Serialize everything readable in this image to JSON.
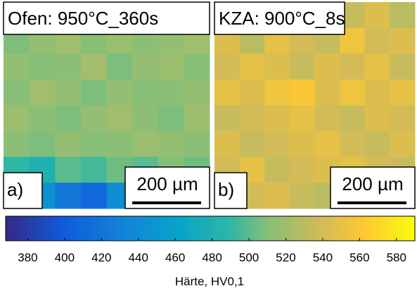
{
  "chart_data": {
    "type": "heatmap",
    "panels": [
      {
        "title": "Ofen: 950°C_360s",
        "label": "a)",
        "scale_bar": "200 µm",
        "values": [
          [
            512,
            518,
            508,
            515,
            510,
            520,
            512,
            508
          ],
          [
            508,
            515,
            520,
            510,
            518,
            512,
            515,
            520
          ],
          [
            515,
            510,
            512,
            522,
            508,
            515,
            518,
            510
          ],
          [
            510,
            520,
            515,
            508,
            515,
            510,
            512,
            515
          ],
          [
            518,
            512,
            508,
            515,
            520,
            512,
            508,
            518
          ],
          [
            512,
            508,
            515,
            510,
            512,
            518,
            515,
            512
          ],
          [
            490,
            480,
            500,
            495,
            505,
            500,
            510,
            505
          ],
          [
            430,
            445,
            420,
            410,
            440,
            420,
            470,
            490
          ]
        ]
      },
      {
        "title": "KZA: 900°C_8s",
        "label": "b)",
        "scale_bar": "200 µm",
        "values": [
          [
            535,
            545,
            530,
            540,
            550,
            535,
            545,
            530
          ],
          [
            545,
            530,
            550,
            540,
            535,
            555,
            540,
            545
          ],
          [
            540,
            550,
            545,
            535,
            545,
            540,
            550,
            535
          ],
          [
            550,
            545,
            555,
            560,
            545,
            555,
            545,
            550
          ],
          [
            535,
            540,
            545,
            550,
            540,
            535,
            545,
            540
          ],
          [
            545,
            535,
            540,
            545,
            550,
            540,
            535,
            545
          ],
          [
            540,
            550,
            535,
            540,
            545,
            550,
            540,
            535
          ],
          [
            530,
            540,
            545,
            535,
            530,
            540,
            545,
            540
          ]
        ]
      }
    ],
    "colorbar": {
      "label": "Härte, HV0,1",
      "lim": [
        368,
        590
      ],
      "ticks": [
        380,
        400,
        420,
        440,
        460,
        480,
        500,
        520,
        540,
        560,
        580
      ]
    },
    "colormap": "parula"
  }
}
